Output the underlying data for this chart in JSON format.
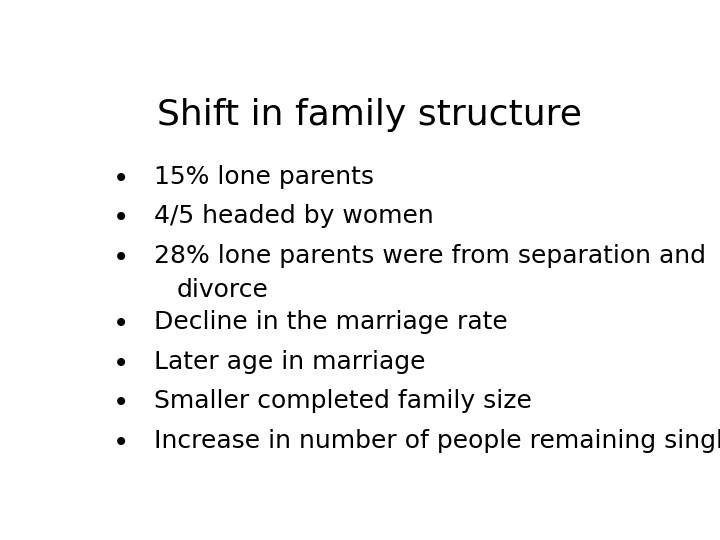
{
  "title": "Shift in family structure",
  "title_fontsize": 26,
  "title_color": "#000000",
  "background_color": "#ffffff",
  "bullet_items": [
    [
      "15% lone parents"
    ],
    [
      "4/5 headed by women"
    ],
    [
      "28% lone parents were from separation and",
      "divorce"
    ],
    [
      "Decline in the marriage rate"
    ],
    [
      "Later age in marriage"
    ],
    [
      "Smaller completed family size"
    ],
    [
      "Increase in number of people remaining single"
    ]
  ],
  "bullet_fontsize": 18,
  "bullet_color": "#000000",
  "font_family": "DejaVu Sans"
}
